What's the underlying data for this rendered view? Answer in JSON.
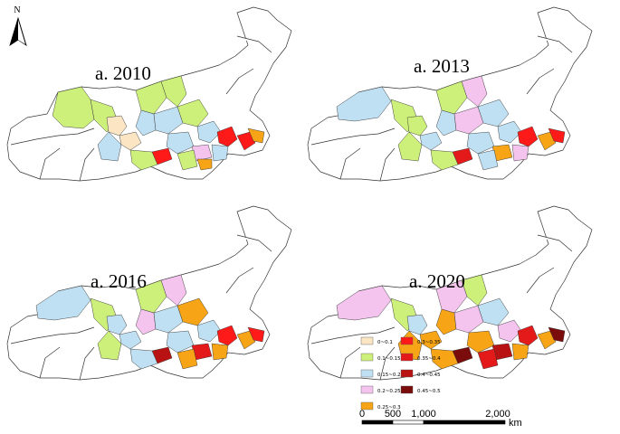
{
  "maps": [
    {
      "title": "a. 2010"
    },
    {
      "title": "a. 2013"
    },
    {
      "title": "a. 2016"
    },
    {
      "title": "a. 2020"
    }
  ],
  "north_arrow": {
    "label": "N"
  },
  "legend": [
    {
      "label": "0~0.1",
      "color": "#fbe5c3"
    },
    {
      "label": "0.1~0.15",
      "color": "#cdf07a"
    },
    {
      "label": "0.15~0.2",
      "color": "#bfe0f2"
    },
    {
      "label": "0.2~0.25",
      "color": "#f4c4ee"
    },
    {
      "label": "0.25~0.3",
      "color": "#f7a516"
    },
    {
      "label": "0.3~0.35",
      "color": "#ff1a1a"
    },
    {
      "label": "0.35~0.4",
      "color": "#e41a1a"
    },
    {
      "label": "0.4~0.45",
      "color": "#b81212"
    },
    {
      "label": "0.45~0.5",
      "color": "#7a0c0c"
    }
  ],
  "scale_bar": {
    "ticks": [
      "0",
      "500",
      "1,000",
      "2,000"
    ],
    "unit": "km"
  }
}
